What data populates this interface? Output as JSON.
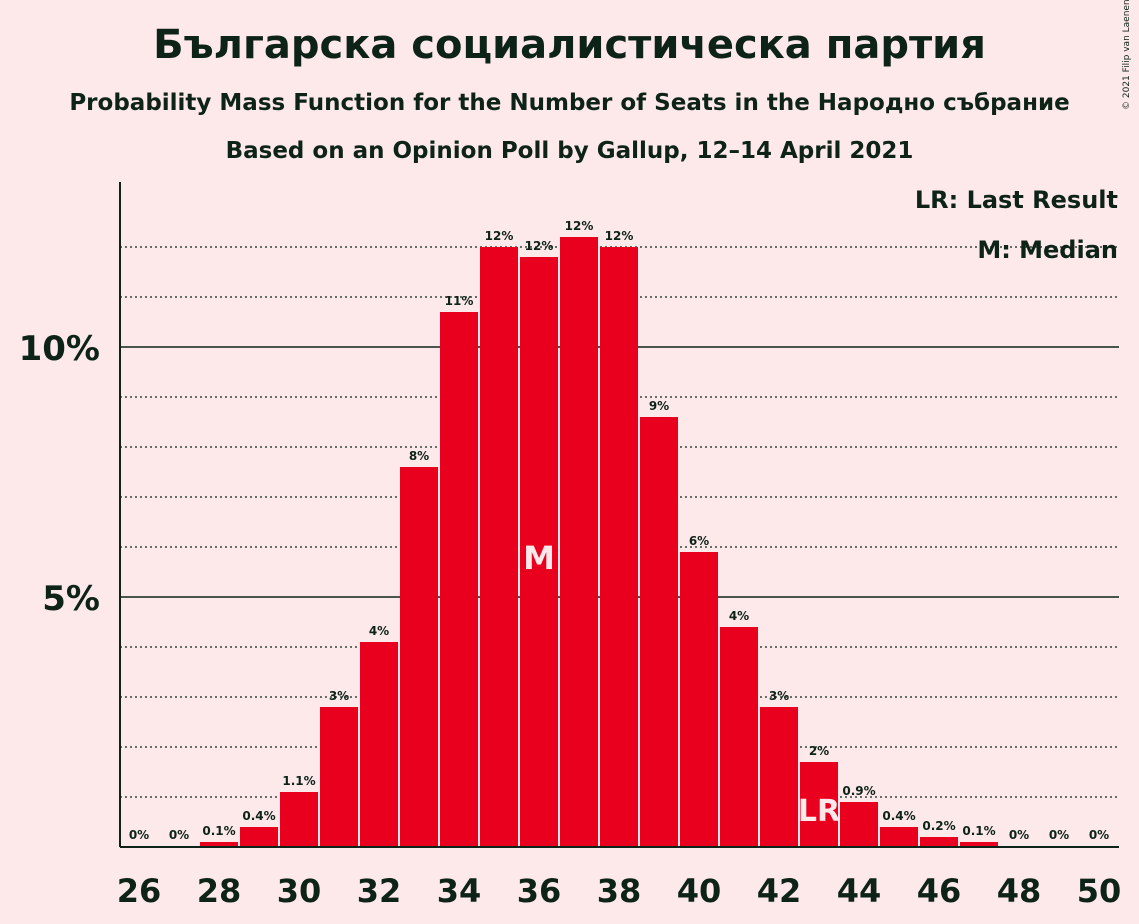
{
  "title": "Българска социалистическа партия",
  "subtitle": "Probability Mass Function for the Number of Seats in the Народно събрание",
  "subtitle2": "Based on an Opinion Poll by Gallup, 12–14 April 2021",
  "copyright": "© 2021 Filip van Laenen",
  "legend": {
    "lr": "LR: Last Result",
    "median": "M: Median"
  },
  "colors": {
    "bar": "#e8001e",
    "background": "#fde8ea",
    "text": "#0d2318"
  },
  "chart_data": {
    "type": "bar",
    "x": [
      26,
      27,
      28,
      29,
      30,
      31,
      32,
      33,
      34,
      35,
      36,
      37,
      38,
      39,
      40,
      41,
      42,
      43,
      44,
      45,
      46,
      47,
      48,
      49,
      50
    ],
    "values": [
      0,
      0,
      0.1,
      0.4,
      1.1,
      2.8,
      4.1,
      7.6,
      10.7,
      12.0,
      11.8,
      12.2,
      12.0,
      8.6,
      5.9,
      4.4,
      2.8,
      1.7,
      0.9,
      0.4,
      0.2,
      0.1,
      0,
      0,
      0
    ],
    "labels": [
      "0%",
      "0%",
      "0.1%",
      "0.4%",
      "1.1%",
      "3%",
      "4%",
      "8%",
      "11%",
      "12%",
      "12%",
      "12%",
      "12%",
      "9%",
      "6%",
      "4%",
      "3%",
      "2%",
      "0.9%",
      "0.4%",
      "0.2%",
      "0.1%",
      "0%",
      "0%",
      "0%"
    ],
    "xticks": [
      26,
      28,
      30,
      32,
      34,
      36,
      38,
      40,
      42,
      44,
      46,
      48,
      50
    ],
    "yticks": [
      {
        "value": 5,
        "label": "5%"
      },
      {
        "value": 10,
        "label": "10%"
      }
    ],
    "ylim": [
      0,
      13.3
    ],
    "median_seat": 36,
    "median_marker": "M",
    "last_result_seat": 43,
    "last_result_marker": "LR",
    "unit": "%"
  }
}
